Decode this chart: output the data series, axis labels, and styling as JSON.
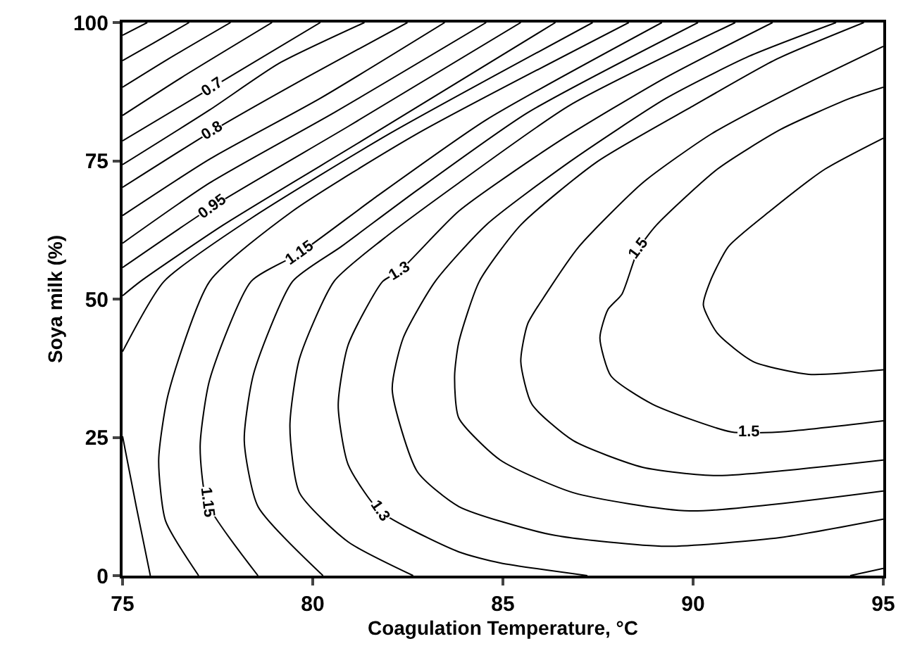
{
  "chart_data": {
    "type": "line",
    "xlabel": "Coagulation Temperature, °C",
    "ylabel": "Soya milk (%)",
    "xlim": [
      75,
      95
    ],
    "xticks": [
      75,
      80,
      85,
      90,
      95
    ],
    "ylim": [
      0,
      100
    ],
    "yticks": [
      0,
      25,
      50,
      75,
      100
    ],
    "grid": false,
    "marker": "none",
    "line_style": "solid",
    "series": [
      {
        "color": "#000000",
        "x": [
          75,
          75.65
        ],
        "values": [
          97.7,
          100
        ]
      },
      {
        "color": "#000000",
        "x": [
          75,
          75.84,
          76.75
        ],
        "values": [
          93.1,
          96.4,
          100
        ]
      },
      {
        "color": "#000000",
        "x": [
          75,
          76.2,
          77.84
        ],
        "values": [
          88.3,
          93.4,
          100
        ]
      },
      {
        "color": "#000000",
        "x": [
          75,
          76.56,
          78.93
        ],
        "values": [
          83.2,
          90.1,
          100
        ]
      },
      {
        "color": "#000000",
        "x": [
          75,
          77.36,
          80.2
        ],
        "values": [
          78.6,
          88.3,
          100
        ]
      },
      {
        "color": "#000000",
        "x": [
          75,
          77.29,
          79.11,
          81.36
        ],
        "values": [
          74.3,
          84.2,
          92.6,
          100
        ]
      },
      {
        "color": "#000000",
        "x": [
          75,
          77.36,
          79.84,
          82.49
        ],
        "values": [
          70.2,
          80.4,
          90.1,
          100
        ]
      },
      {
        "color": "#000000",
        "x": [
          75,
          77.29,
          80.2,
          83.47
        ],
        "values": [
          65.1,
          75.3,
          86.3,
          100
        ]
      },
      {
        "color": "#000000",
        "x": [
          75,
          77.29,
          80.56,
          84.56
        ],
        "values": [
          60.1,
          71.0,
          83.7,
          100
        ]
      },
      {
        "color": "#000000",
        "x": [
          75,
          77.36,
          80.93,
          85.47
        ],
        "values": [
          55.7,
          66.7,
          81.2,
          100
        ]
      },
      {
        "color": "#000000",
        "x": [
          75,
          75.47,
          77.65,
          81.29,
          86.38
        ],
        "values": [
          50.6,
          53.2,
          63.4,
          78.6,
          100
        ]
      },
      {
        "color": "#000000",
        "x": [
          75.73,
          75.36,
          75,
          null,
          75,
          76.09,
          78.38,
          82.02,
          87.36
        ],
        "values": [
          0,
          12.5,
          25.2,
          null,
          40.5,
          53.2,
          64.6,
          79.9,
          100
        ]
      },
      {
        "color": "#000000",
        "x": [
          77.0,
          76.13,
          75.95,
          76.2,
          77.29,
          79.47,
          82.75,
          88.31
        ],
        "values": [
          0,
          9.9,
          20.9,
          32.8,
          53.2,
          65.9,
          79.9,
          100
        ]
      },
      {
        "color": "#000000",
        "x": [
          78.56,
          77.22,
          77.04,
          77.29,
          78.38,
          79.65,
          81.65,
          84.56,
          89.18
        ],
        "values": [
          0,
          13.2,
          23.4,
          35.4,
          53.2,
          58.3,
          68.4,
          82.4,
          100
        ]
      },
      {
        "color": "#000000",
        "x": [
          80.27,
          78.56,
          78.2,
          78.45,
          79.47,
          80.75,
          82.75,
          85.65,
          90.13
        ],
        "values": [
          0,
          12.5,
          24.4,
          36.6,
          53.2,
          59.5,
          69.7,
          83.7,
          100
        ]
      },
      {
        "color": "#000000",
        "x": [
          82.64,
          80.93,
          79.65,
          79.4,
          79.65,
          80.56,
          81.84,
          83.84,
          86.75,
          91.11
        ],
        "values": [
          0,
          6.1,
          15.0,
          27.0,
          39.2,
          53.2,
          60.8,
          71.0,
          85.0,
          100
        ]
      },
      {
        "color": "#000000",
        "x": [
          87.22,
          84.93,
          83.84,
          81.76,
          80.93,
          80.67,
          80.93,
          81.84,
          82.27,
          83.84,
          86.49,
          89.29,
          92.09,
          null,
          94.13,
          95
        ],
        "values": [
          0,
          2.3,
          4.3,
          11.7,
          20.1,
          30.8,
          41.7,
          53.2,
          55.0,
          65.9,
          78.6,
          90.1,
          100,
          null,
          0,
          1.3
        ]
      },
      {
        "color": "#000000",
        "x": [
          95,
          92.31,
          89.29,
          86.27,
          83.84,
          82.75,
          82.09,
          82.38,
          83.22,
          84.56,
          86.75,
          89.29,
          91.47,
          93.76
        ],
        "values": [
          10.2,
          6.9,
          5.3,
          7.4,
          12.5,
          18.8,
          33.6,
          43.0,
          53.2,
          63.4,
          74.8,
          86.3,
          93.9,
          100
        ]
      },
      {
        "color": "#000000",
        "x": [
          95,
          89.91,
          86.85,
          84.93,
          83.84,
          83.73,
          83.84,
          84.38,
          85.47,
          87.47,
          90.02,
          92.2,
          94.49
        ],
        "values": [
          15.3,
          11.7,
          15.0,
          20.9,
          28.5,
          36.1,
          42.2,
          53.2,
          63.4,
          74.8,
          85.0,
          93.4,
          100
        ]
      },
      {
        "color": "#000000",
        "x": [
          95,
          90.64,
          88.67,
          86.85,
          85.76,
          85.47,
          85.65,
          86.13,
          87.0,
          88.67,
          90.49,
          92.93,
          95
        ],
        "values": [
          20.9,
          18.1,
          19.6,
          24.4,
          31.0,
          38.7,
          45.5,
          50.9,
          59.5,
          71.0,
          79.9,
          88.8,
          95.7
        ]
      },
      {
        "color": "#000000",
        "x": [
          95,
          92.31,
          91.0,
          88.93,
          87.84,
          87.55,
          87.76,
          88.13,
          88.56,
          89.04,
          90.64,
          92.31,
          94.13,
          95
        ],
        "values": [
          28.0,
          26.0,
          26.0,
          31.0,
          36.1,
          43.0,
          48.1,
          50.9,
          59.0,
          63.4,
          73.5,
          80.7,
          86.3,
          88.3
        ]
      },
      {
        "color": "#000000",
        "x": [
          95,
          93.04,
          91.58,
          90.64,
          90.27,
          90.45,
          90.93,
          92.02,
          93.47,
          95
        ],
        "values": [
          37.2,
          36.4,
          38.7,
          43.8,
          48.9,
          53.2,
          59.5,
          65.9,
          73.5,
          79.1
        ]
      }
    ],
    "annotations": [
      {
        "text": "0.7",
        "x": 77.36,
        "y": 88.3
      },
      {
        "text": "0.8",
        "x": 77.36,
        "y": 80.4
      },
      {
        "text": "0.95",
        "x": 77.36,
        "y": 66.7
      },
      {
        "text": "1.15",
        "x": 79.65,
        "y": 58.3
      },
      {
        "text": "1.3",
        "x": 82.27,
        "y": 55.0
      },
      {
        "text": "1.5",
        "x": 88.56,
        "y": 59.0
      },
      {
        "text": "1.5",
        "x": 91.47,
        "y": 26.0
      },
      {
        "text": "1.15",
        "x": 77.22,
        "y": 13.2
      },
      {
        "text": "1.3",
        "x": 81.76,
        "y": 11.7
      }
    ]
  }
}
